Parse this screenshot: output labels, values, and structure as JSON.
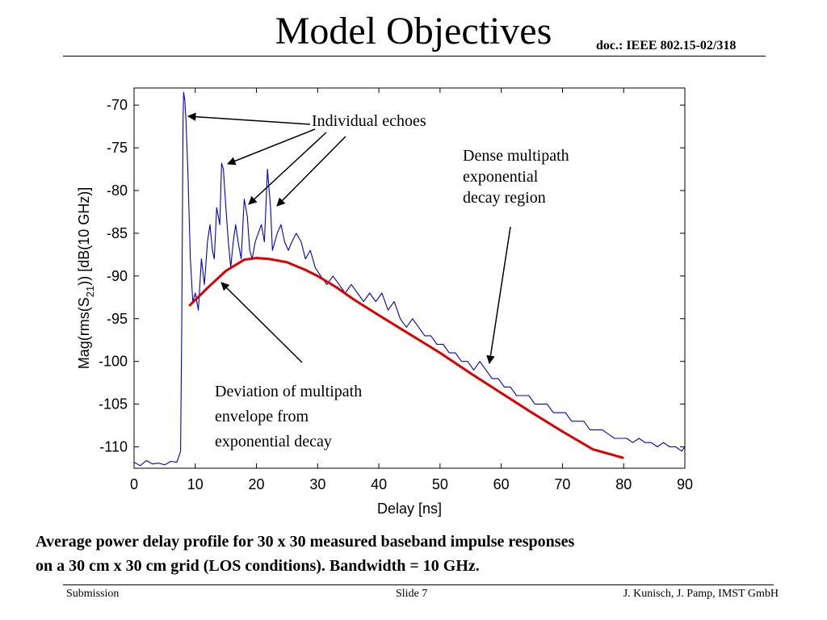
{
  "slide": {
    "title": "Model Objectives",
    "doc_ref": "doc.: IEEE 802.15-02/318",
    "annotations": {
      "echoes": "Individual echoes",
      "dense_line1": "Dense multipath",
      "dense_line2": "exponential",
      "dense_line3": "decay region",
      "deviation_line1": "Deviation of multipath",
      "deviation_line2": "envelope from",
      "deviation_line3": "exponential decay"
    },
    "caption_line1": "Average power delay profile for 30 x 30 measured baseband impulse responses",
    "caption_line2": "on a 30 cm x 30 cm grid (LOS conditions). Bandwidth = 10 GHz.",
    "footer": {
      "left": "Submission",
      "center": "Slide 7",
      "right": "J. Kunisch, J. Pamp, IMST GmbH"
    }
  },
  "chart_data": {
    "type": "line",
    "xlabel": "Delay [ns]",
    "ylabel_prefix": "Mag(rms(S",
    "ylabel_sub": "21",
    "ylabel_suffix": ")) [dB(10 GHz)]",
    "xlim": [
      0,
      90
    ],
    "ylim": [
      -112.5,
      -68
    ],
    "xticks": [
      0,
      10,
      20,
      30,
      40,
      50,
      60,
      70,
      80,
      90
    ],
    "yticks": [
      -110,
      -105,
      -100,
      -95,
      -90,
      -85,
      -80,
      -75,
      -70
    ],
    "grid": false,
    "colors": {
      "measured": "#0000cc",
      "model": "#dd0000"
    },
    "series": [
      {
        "role": "measured",
        "x": [
          0,
          1,
          2,
          3,
          4,
          5,
          6,
          7,
          7.6,
          7.8,
          8.0,
          8.1,
          8.3,
          8.5,
          8.8,
          9.2,
          9.6,
          10.0,
          10.5,
          11.0,
          11.5,
          12.0,
          12.4,
          12.8,
          13.1,
          13.5,
          14.0,
          14.3,
          14.6,
          15.0,
          15.4,
          15.8,
          16.2,
          16.6,
          17.0,
          17.5,
          18.0,
          18.5,
          18.9,
          19.3,
          19.8,
          20.3,
          20.8,
          21.3,
          21.8,
          22.3,
          22.6,
          23.0,
          23.4,
          24.0,
          24.6,
          25.2,
          25.8,
          26.5,
          27.3,
          28.0,
          28.8,
          29.6,
          30.5,
          31.5,
          32.5,
          33.5,
          34.5,
          35.5,
          36.5,
          37.5,
          38.5,
          39.5,
          40.5,
          41.5,
          42.5,
          43.5,
          44.5,
          45.5,
          46.5,
          47.5,
          48.5,
          49.5,
          50.5,
          51.5,
          52.5,
          53.5,
          54.5,
          55.5,
          56.5,
          57.5,
          58.5,
          59.5,
          60.5,
          61.5,
          62.5,
          63.5,
          64.5,
          65.5,
          66.5,
          67.5,
          68.5,
          69.5,
          70.5,
          71.5,
          72.5,
          73.5,
          74.5,
          75.5,
          76.5,
          77.5,
          78.5,
          79.5,
          80.5,
          81.5,
          82.5,
          83.5,
          84.5,
          85.5,
          86.5,
          87.5,
          88.5,
          89.5,
          90
        ],
        "y": [
          -111.8,
          -112.2,
          -111.6,
          -112.0,
          -111.9,
          -112.1,
          -111.7,
          -111.8,
          -110.5,
          -95,
          -72,
          -68.5,
          -69.5,
          -72,
          -78,
          -88,
          -93,
          -92,
          -94,
          -88,
          -91,
          -86,
          -84,
          -87,
          -88,
          -82,
          -84,
          -76.8,
          -77.5,
          -82,
          -86,
          -89,
          -86,
          -84,
          -86,
          -88,
          -81,
          -83,
          -87,
          -88,
          -86,
          -85,
          -84,
          -86,
          -77.5,
          -82,
          -87,
          -86,
          -85,
          -84,
          -86,
          -87,
          -86,
          -85,
          -86,
          -88,
          -87,
          -89,
          -90,
          -91,
          -90,
          -91,
          -92,
          -91,
          -92,
          -93,
          -92,
          -93,
          -92,
          -94,
          -93,
          -95,
          -96,
          -95,
          -96,
          -97,
          -97,
          -98,
          -98,
          -99,
          -99,
          -100,
          -100,
          -101,
          -100,
          -101,
          -102,
          -102,
          -103,
          -103,
          -104,
          -104,
          -104,
          -105,
          -105,
          -105,
          -106,
          -106,
          -106,
          -107,
          -107,
          -107,
          -108,
          -108,
          -108,
          -108.5,
          -109,
          -109,
          -109,
          -109.5,
          -109,
          -109.5,
          -109.5,
          -110,
          -109.5,
          -110,
          -110,
          -110.5,
          -110
        ]
      },
      {
        "role": "model",
        "x": [
          9,
          12,
          15,
          18,
          20,
          22,
          25,
          28,
          30,
          33,
          36,
          40,
          45,
          50,
          55,
          60,
          65,
          70,
          75,
          80
        ],
        "y": [
          -93.5,
          -91.4,
          -89.4,
          -88.1,
          -87.9,
          -88.0,
          -88.4,
          -89.3,
          -90.0,
          -91.3,
          -92.8,
          -94.6,
          -96.8,
          -99.0,
          -101.4,
          -103.7,
          -106.0,
          -108.2,
          -110.3,
          -111.3
        ]
      }
    ]
  }
}
